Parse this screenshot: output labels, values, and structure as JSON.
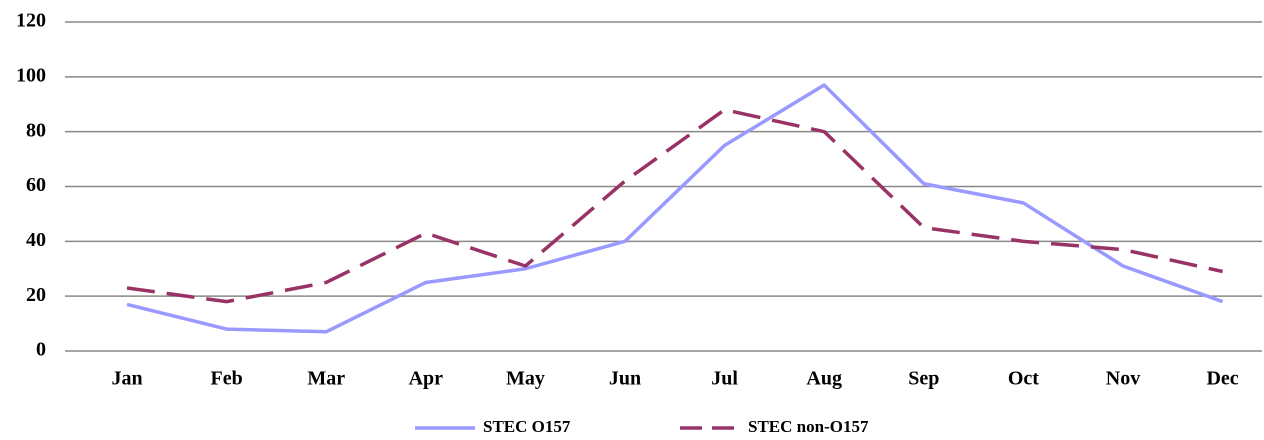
{
  "chart_data": {
    "type": "line",
    "categories": [
      "Jan",
      "Feb",
      "Mar",
      "Apr",
      "May",
      "Jun",
      "Jul",
      "Aug",
      "Sep",
      "Oct",
      "Nov",
      "Dec"
    ],
    "series": [
      {
        "name": "STEC O157",
        "color": "#9999ff",
        "dash": false,
        "values": [
          17,
          8,
          7,
          25,
          30,
          40,
          75,
          97,
          61,
          54,
          31,
          18
        ]
      },
      {
        "name": "STEC non-O157",
        "color": "#993366",
        "dash": true,
        "values": [
          23,
          18,
          25,
          43,
          31,
          62,
          88,
          80,
          45,
          40,
          37,
          29
        ]
      }
    ],
    "ylim": [
      0,
      120
    ],
    "yticks": [
      0,
      20,
      40,
      60,
      80,
      100,
      120
    ],
    "grid": true,
    "legend": "bottom"
  }
}
